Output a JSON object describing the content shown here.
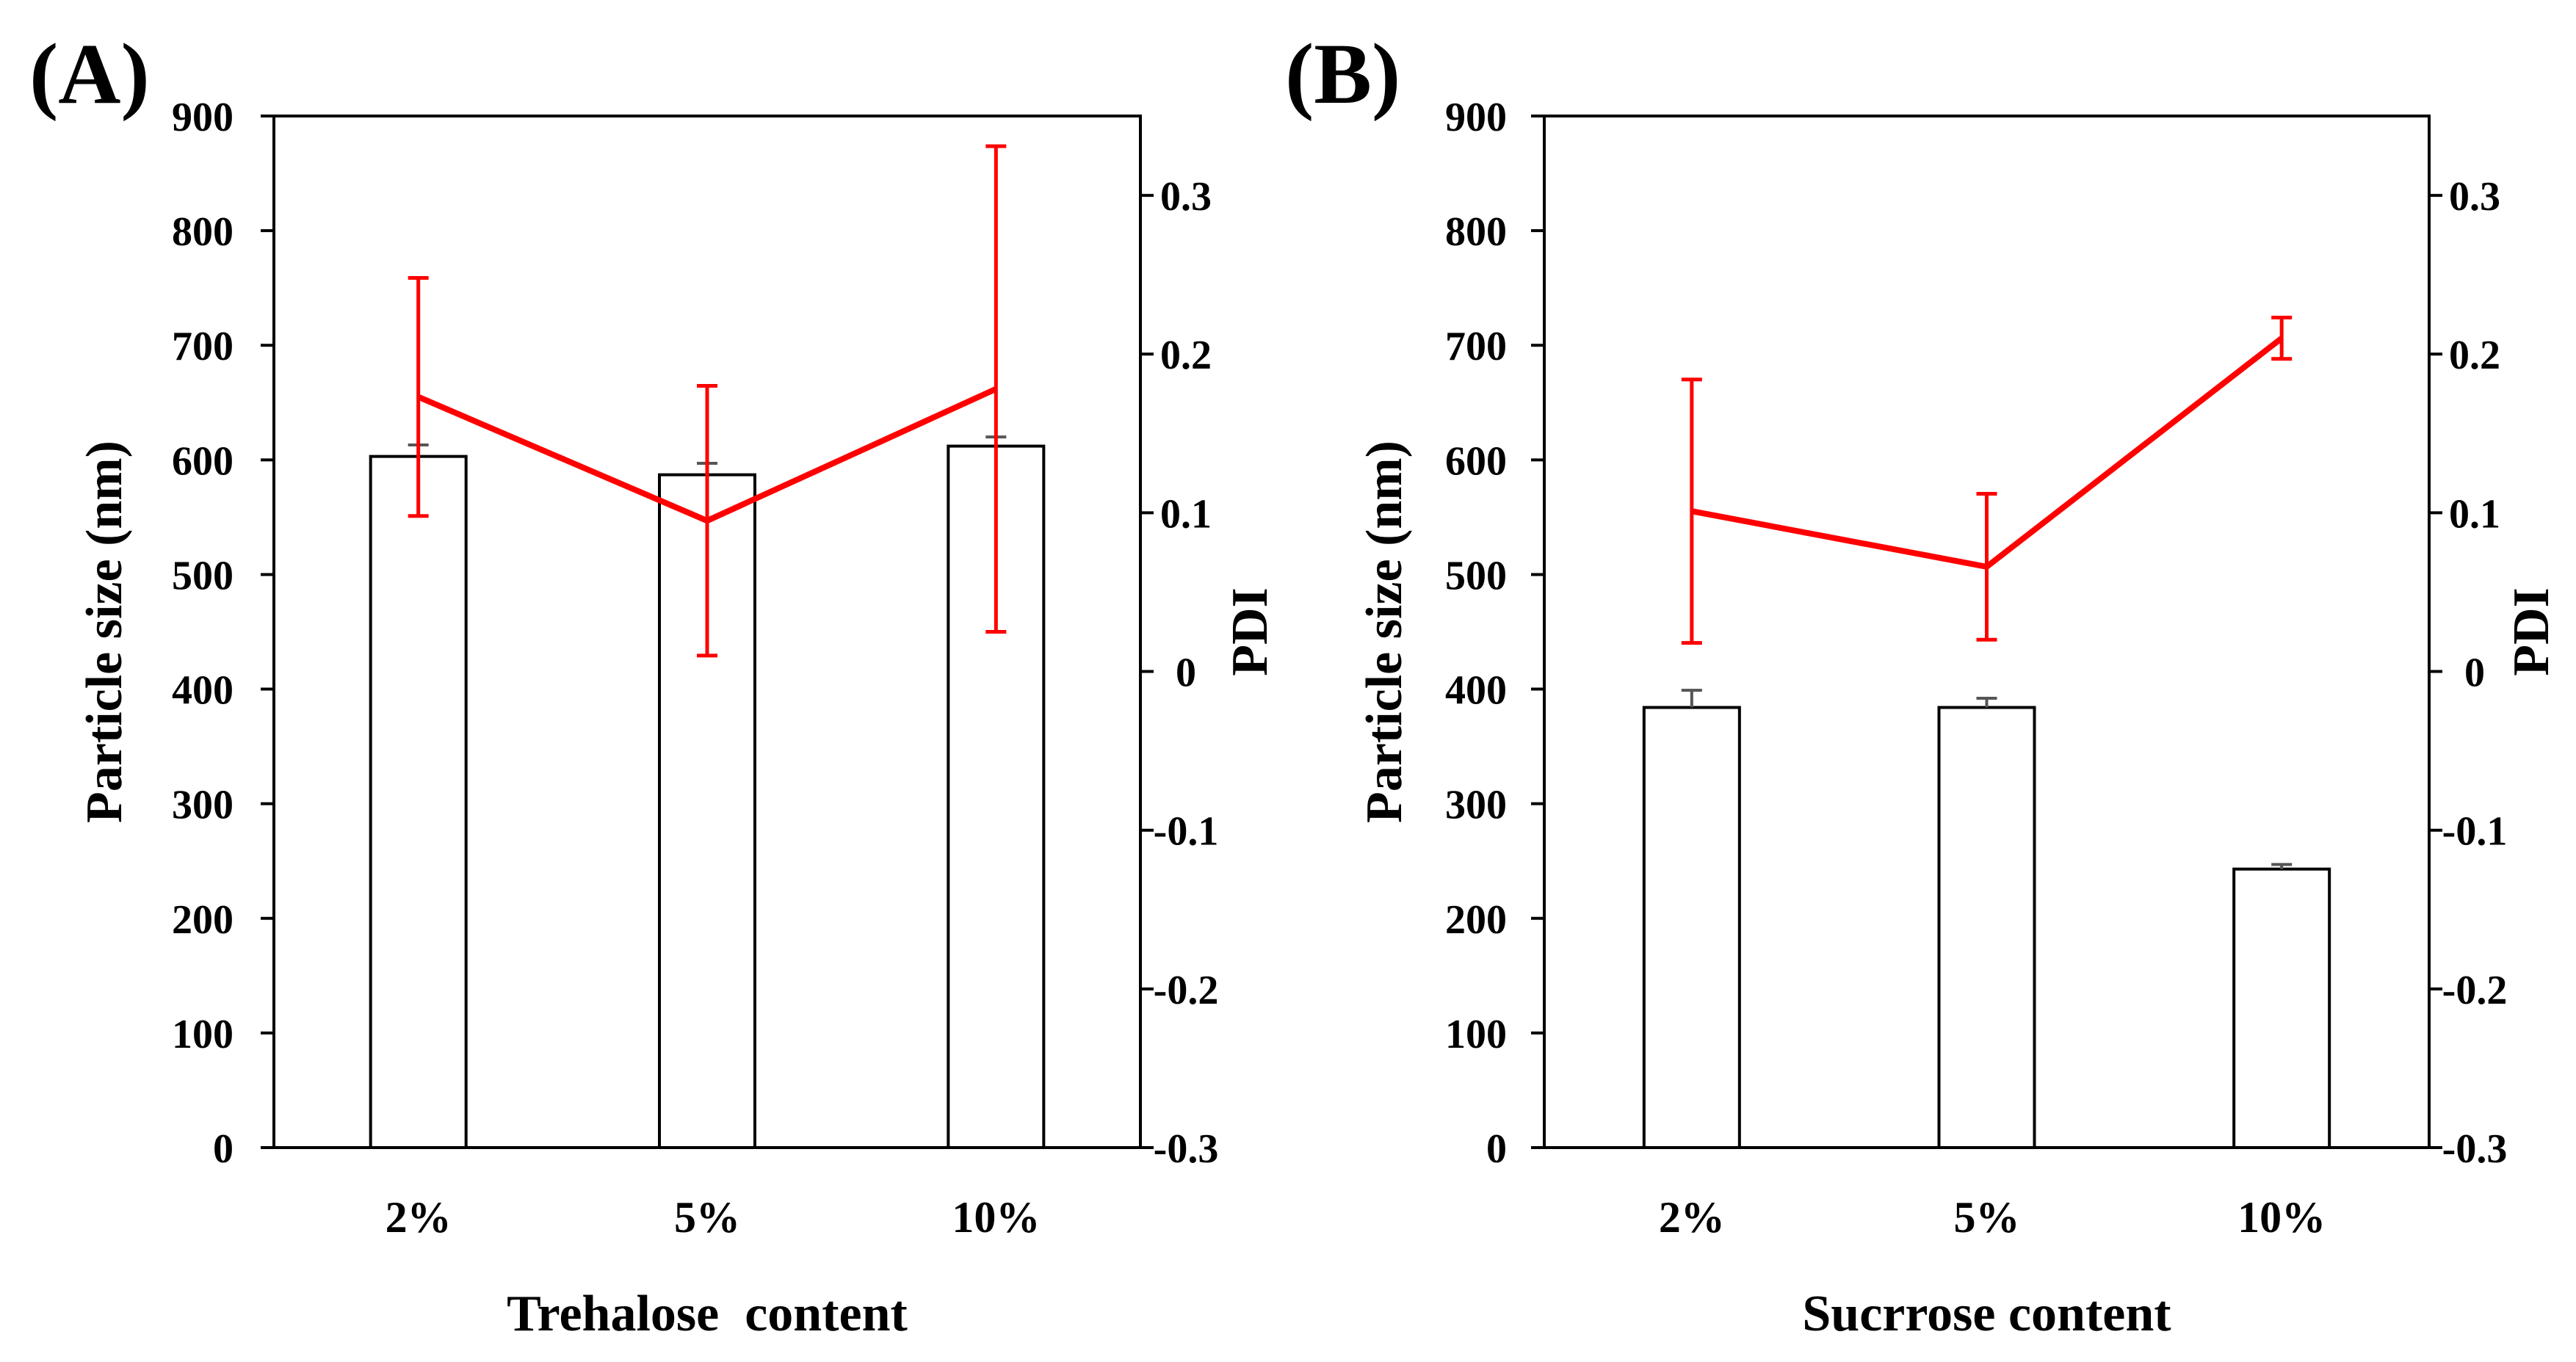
{
  "figure": {
    "title": ""
  },
  "colors": {
    "bar_fill": "#ffffff",
    "bar_stroke": "#000000",
    "line": "#ff0000",
    "bar_error": "#555555",
    "axis": "#000000"
  },
  "chart_data": [
    {
      "type": "bar+line",
      "panel_label": "(A)",
      "title": "",
      "xlabel": "Trehalose  content",
      "ylabel": "Particle size (nm)",
      "y2label": "PDI",
      "categories": [
        "2%",
        "5%",
        "10%"
      ],
      "ylim": [
        0,
        900
      ],
      "yticks": [
        "0",
        "100",
        "200",
        "300",
        "400",
        "500",
        "600",
        "700",
        "800",
        "900"
      ],
      "y2lim": [
        -0.3,
        0.35
      ],
      "y2ticks": [
        "-0.3",
        "-0.2",
        "-0.1",
        "0",
        "0.1",
        "0.2",
        "0.3"
      ],
      "series": [
        {
          "name": "Particle size",
          "kind": "bar",
          "axis": "left",
          "values": [
            603,
            587,
            612
          ],
          "errors": [
            10,
            10,
            8
          ]
        },
        {
          "name": "PDI",
          "kind": "line",
          "axis": "right",
          "values": [
            0.173,
            0.095,
            0.178
          ],
          "errors": [
            0.075,
            0.085,
            0.153
          ]
        }
      ],
      "grid": false,
      "legend": "none"
    },
    {
      "type": "bar+line",
      "panel_label": "(B)",
      "title": "",
      "xlabel": "Sucrrose content",
      "ylabel": "Particle size (nm)",
      "y2label": "PDI",
      "categories": [
        "2%",
        "5%",
        "10%"
      ],
      "ylim": [
        0,
        900
      ],
      "yticks": [
        "0",
        "100",
        "200",
        "300",
        "400",
        "500",
        "600",
        "700",
        "800",
        "900"
      ],
      "y2lim": [
        -0.3,
        0.35
      ],
      "y2ticks": [
        "-0.3",
        "-0.2",
        "-0.1",
        "0",
        "0.1",
        "0.2",
        "0.3"
      ],
      "series": [
        {
          "name": "Particle size",
          "kind": "bar",
          "axis": "left",
          "values": [
            384,
            384,
            243
          ],
          "errors": [
            15,
            8,
            4
          ]
        },
        {
          "name": "PDI",
          "kind": "line",
          "axis": "right",
          "values": [
            0.101,
            0.066,
            0.21
          ],
          "errors": [
            0.083,
            0.046,
            0.013
          ]
        }
      ],
      "grid": false,
      "legend": "none"
    }
  ]
}
